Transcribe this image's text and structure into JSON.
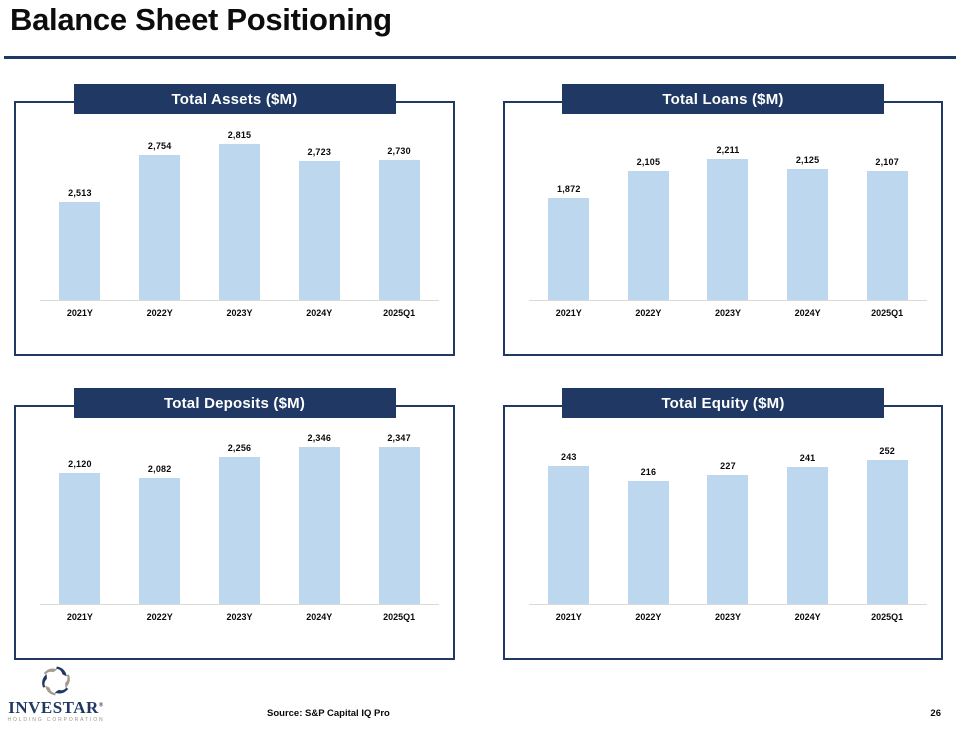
{
  "page": {
    "title": "Balance Sheet Positioning",
    "source_note": "Source: S&P Capital IQ Pro",
    "page_number": "26"
  },
  "logo": {
    "name": "INVESTAR",
    "registered_mark": "®",
    "subtitle": "HOLDING CORPORATION"
  },
  "colors": {
    "navy": "#1F3864",
    "bar_fill": "#BDD7EE",
    "axis_line": "#D9D9D9",
    "logo_gray": "#9B948A"
  },
  "chart_data": [
    {
      "type": "bar",
      "title": "Total Assets ($M)",
      "categories": [
        "2021Y",
        "2022Y",
        "2023Y",
        "2024Y",
        "2025Q1"
      ],
      "values": [
        2513,
        2754,
        2815,
        2723,
        2730
      ],
      "labels": [
        "2,513",
        "2,754",
        "2,815",
        "2,723",
        "2,730"
      ],
      "xlabel": "",
      "ylabel": "",
      "ylim": [
        2000,
        3000
      ],
      "grid": false,
      "legend": "none"
    },
    {
      "type": "bar",
      "title": "Total Loans ($M)",
      "categories": [
        "2021Y",
        "2022Y",
        "2023Y",
        "2024Y",
        "2025Q1"
      ],
      "values": [
        1872,
        2105,
        2211,
        2125,
        2107
      ],
      "labels": [
        "1,872",
        "2,105",
        "2,211",
        "2,125",
        "2,107"
      ],
      "xlabel": "",
      "ylabel": "",
      "ylim": [
        1000,
        2500
      ],
      "grid": false,
      "legend": "none"
    },
    {
      "type": "bar",
      "title": "Total Deposits ($M)",
      "categories": [
        "2021Y",
        "2022Y",
        "2023Y",
        "2024Y",
        "2025Q1"
      ],
      "values": [
        2120,
        2082,
        2256,
        2346,
        2347
      ],
      "labels": [
        "2,120",
        "2,082",
        "2,256",
        "2,346",
        "2,347"
      ],
      "xlabel": "",
      "ylabel": "",
      "ylim": [
        1000,
        2500
      ],
      "grid": false,
      "legend": "none"
    },
    {
      "type": "bar",
      "title": "Total Equity ($M)",
      "categories": [
        "2021Y",
        "2022Y",
        "2023Y",
        "2024Y",
        "2025Q1"
      ],
      "values": [
        243,
        216,
        227,
        241,
        252
      ],
      "labels": [
        "243",
        "216",
        "227",
        "241",
        "252"
      ],
      "xlabel": "",
      "ylabel": "",
      "ylim": [
        0,
        300
      ],
      "grid": false,
      "legend": "none"
    }
  ]
}
